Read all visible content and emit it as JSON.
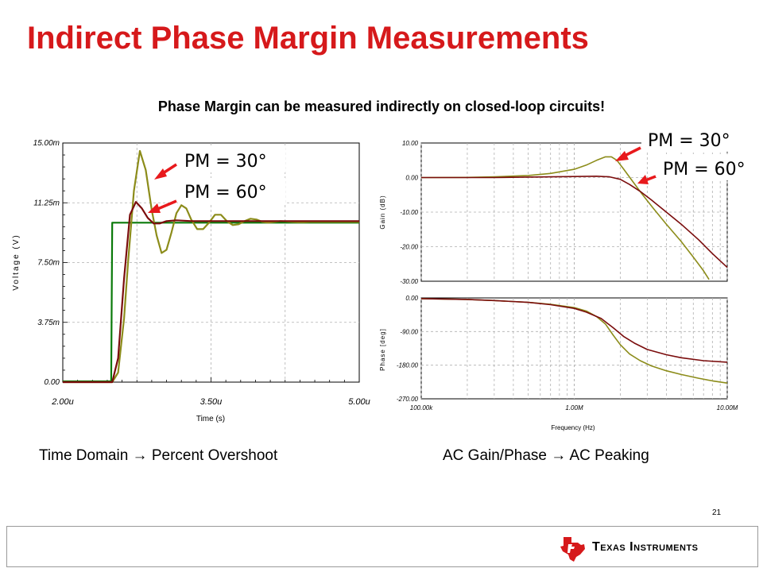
{
  "slide": {
    "title": "Indirect Phase Margin Measurements",
    "subtitle": "Phase Margin can be measured indirectly on closed-loop circuits!",
    "caption_left": "Time Domain → Percent Overshoot",
    "caption_right": "AC Gain/Phase → AC Peaking",
    "page_number": "21",
    "logo_text": "Texas Instruments",
    "logo_icon": "texas-state-icon",
    "title_color": "#d6191b"
  },
  "callouts": {
    "time_pm30": "PM = 30°",
    "time_pm60": "PM = 60°",
    "ac_pm30": "PM = 30°",
    "ac_pm60": "PM = 60°",
    "arrow_color": "#e8191c"
  },
  "chart_data": [
    {
      "type": "line",
      "xlabel": "Time (s)",
      "ylabel": "Voltage (V)",
      "xlim": [
        2.0,
        5.0
      ],
      "ylim": [
        0.0,
        15.0
      ],
      "x_unit": "µs",
      "y_unit": "mV",
      "x_ticks": [
        "2.00u",
        "3.50u",
        "5.00u"
      ],
      "y_ticks": [
        "0.00",
        "3.75m",
        "7.50m",
        "11.25m",
        "15.00m"
      ],
      "grid": true,
      "series": [
        {
          "key": "input",
          "color": "#0a7a0a",
          "x": [
            2.0,
            2.49,
            2.5,
            5.0
          ],
          "y": [
            0.05,
            0.05,
            10.0,
            10.0
          ]
        },
        {
          "key": "pm30",
          "color": "#8c8c1a",
          "x": [
            2.0,
            2.5,
            2.56,
            2.62,
            2.66,
            2.72,
            2.78,
            2.84,
            2.9,
            2.95,
            3.0,
            3.05,
            3.1,
            3.15,
            3.2,
            3.25,
            3.3,
            3.36,
            3.42,
            3.48,
            3.54,
            3.6,
            3.66,
            3.72,
            3.78,
            3.84,
            3.9,
            3.96,
            4.02,
            4.08,
            4.14,
            4.2,
            4.26,
            4.32,
            4.38,
            4.44,
            4.5,
            4.6,
            4.7,
            4.8,
            4.9,
            5.0
          ],
          "y": [
            0.0,
            0.0,
            0.6,
            4.0,
            7.5,
            12.0,
            14.5,
            13.3,
            10.8,
            9.2,
            8.1,
            8.3,
            9.4,
            10.6,
            11.1,
            10.9,
            10.2,
            9.6,
            9.6,
            10.0,
            10.5,
            10.5,
            10.1,
            9.85,
            9.9,
            10.1,
            10.25,
            10.2,
            10.05,
            10.0,
            10.05,
            10.1,
            10.08,
            10.05,
            10.03,
            10.03,
            10.05,
            10.05,
            10.05,
            10.05,
            10.05,
            10.05
          ]
        },
        {
          "key": "pm60",
          "color": "#7a0c0c",
          "x": [
            2.0,
            2.5,
            2.56,
            2.62,
            2.68,
            2.74,
            2.8,
            2.86,
            2.92,
            2.98,
            3.05,
            3.15,
            3.3,
            3.5,
            4.0,
            5.0
          ],
          "y": [
            0.0,
            0.0,
            1.5,
            6.5,
            10.5,
            11.3,
            10.9,
            10.3,
            9.95,
            9.95,
            10.1,
            10.15,
            10.1,
            10.1,
            10.1,
            10.1
          ]
        }
      ]
    },
    {
      "type": "line",
      "xlabel": "",
      "ylabel": "Gain (dB)",
      "log_x": true,
      "xlim": [
        100000,
        10000000
      ],
      "ylim": [
        -30.0,
        10.0
      ],
      "y_ticks": [
        "10.00",
        "0.00",
        "-10.00",
        "-20.00",
        "-30.00"
      ],
      "grid": true,
      "series": [
        {
          "key": "pm30",
          "color": "#8c8c1a",
          "x": [
            100000,
            200000,
            300000,
            500000,
            700000,
            1000000,
            1200000,
            1400000,
            1600000,
            1750000,
            1900000,
            2100000,
            2400000,
            2800000,
            3300000,
            4000000,
            5000000,
            6000000,
            7000000,
            7600000
          ],
          "y": [
            0.0,
            0.05,
            0.2,
            0.6,
            1.2,
            2.4,
            3.6,
            5.0,
            6.0,
            6.0,
            5.0,
            2.5,
            -1.0,
            -5.0,
            -9.0,
            -13.5,
            -18.5,
            -23.0,
            -27.0,
            -29.5
          ]
        },
        {
          "key": "pm60",
          "color": "#7a0c0c",
          "x": [
            100000,
            300000,
            700000,
            1000000,
            1400000,
            1700000,
            2000000,
            2300000,
            2700000,
            3200000,
            4000000,
            5000000,
            6500000,
            8000000,
            10000000
          ],
          "y": [
            0.0,
            0.0,
            0.2,
            0.3,
            0.4,
            0.2,
            -0.5,
            -2.0,
            -4.0,
            -6.5,
            -10.0,
            -13.5,
            -18.0,
            -22.0,
            -26.0
          ]
        }
      ]
    },
    {
      "type": "line",
      "xlabel": "Frequency (Hz)",
      "ylabel": "Phase [deg]",
      "log_x": true,
      "xlim": [
        100000,
        10000000
      ],
      "ylim": [
        -270.0,
        0.0
      ],
      "x_ticks": [
        "100.00k",
        "1.00M",
        "10.00M"
      ],
      "y_ticks": [
        "0.00",
        "-90.00",
        "-180.00",
        "-270.00"
      ],
      "grid": true,
      "series": [
        {
          "key": "pm30",
          "color": "#8c8c1a",
          "x": [
            100000,
            200000,
            300000,
            500000,
            700000,
            1000000,
            1200000,
            1400000,
            1600000,
            1800000,
            2000000,
            2300000,
            2700000,
            3200000,
            4000000,
            5000000,
            6500000,
            8000000,
            10000000
          ],
          "y": [
            -2.0,
            -4.0,
            -7.0,
            -12.0,
            -17.0,
            -26.0,
            -35.0,
            -50.0,
            -70.0,
            -100.0,
            -125.0,
            -150.0,
            -168.0,
            -182.0,
            -195.0,
            -205.0,
            -215.0,
            -222.0,
            -228.0
          ]
        },
        {
          "key": "pm60",
          "color": "#7a0c0c",
          "x": [
            100000,
            200000,
            300000,
            500000,
            700000,
            1000000,
            1200000,
            1500000,
            1800000,
            2100000,
            2500000,
            3000000,
            4000000,
            5000000,
            7000000,
            10000000
          ],
          "y": [
            -2.0,
            -4.0,
            -7.0,
            -12.0,
            -18.0,
            -28.0,
            -38.0,
            -55.0,
            -80.0,
            -103.0,
            -122.0,
            -138.0,
            -152.0,
            -160.0,
            -168.0,
            -172.0
          ]
        }
      ]
    }
  ]
}
